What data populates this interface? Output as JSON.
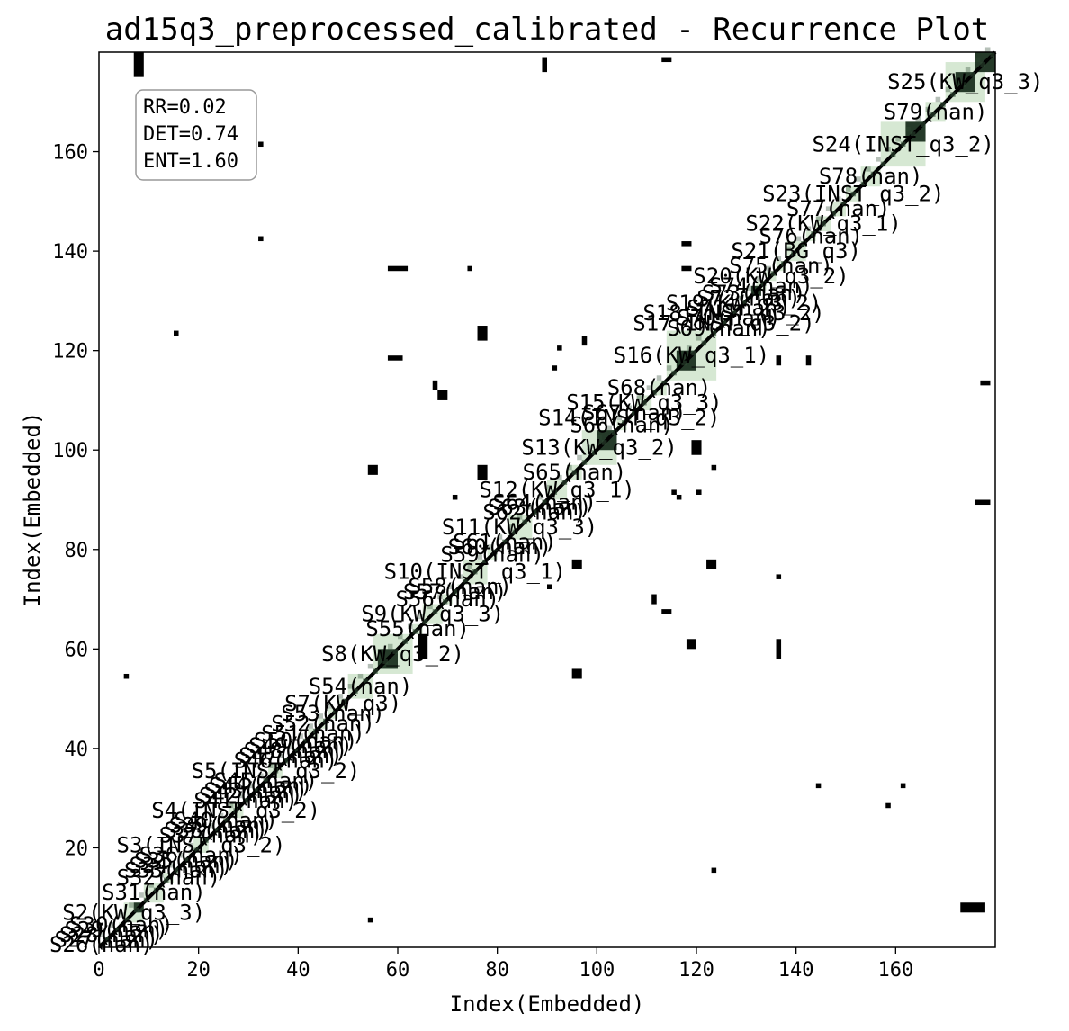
{
  "chart_data": {
    "type": "heatmap",
    "title": "ad15q3_preprocessed_calibrated - Recurrence Plot",
    "xlabel": "Index(Embedded)",
    "ylabel": "Index(Embedded)",
    "xlim": [
      0,
      180
    ],
    "ylim": [
      0,
      180
    ],
    "xticks": [
      0,
      20,
      40,
      60,
      80,
      100,
      120,
      140,
      160
    ],
    "yticks": [
      20,
      40,
      60,
      80,
      100,
      120,
      140,
      160
    ],
    "grid": false,
    "stats_box": {
      "placement": "top-left",
      "lines": [
        "RR=0.02",
        "DET=0.74",
        "ENT=1.60"
      ]
    },
    "colors": {
      "recurrence": "#000000",
      "segment_fill": "#d6e8d3",
      "segment_dense": "#253a29"
    },
    "segments": [
      {
        "label": "S26(nan)",
        "start": 0,
        "end": 1
      },
      {
        "label": "S27(nan)",
        "start": 1,
        "end": 2
      },
      {
        "label": "S28(nan)",
        "start": 2,
        "end": 3
      },
      {
        "label": "S29(nan)",
        "start": 3,
        "end": 4
      },
      {
        "label": "S30(nan)",
        "start": 4,
        "end": 5
      },
      {
        "label": "S2(KW_q3_3)",
        "start": 5,
        "end": 9
      },
      {
        "label": "S31(nan)",
        "start": 9,
        "end": 13
      },
      {
        "label": "S32(nan)",
        "start": 13,
        "end": 15
      },
      {
        "label": "S33(nan)",
        "start": 15,
        "end": 16
      },
      {
        "label": "S34(nan)",
        "start": 16,
        "end": 17
      },
      {
        "label": "S35(nan)",
        "start": 17,
        "end": 18
      },
      {
        "label": "S36(nan)",
        "start": 18,
        "end": 19
      },
      {
        "label": "S3(INST_q3_2)",
        "start": 19,
        "end": 22
      },
      {
        "label": "S37(nan)",
        "start": 22,
        "end": 23
      },
      {
        "label": "S38(nan)",
        "start": 23,
        "end": 24
      },
      {
        "label": "S39(nan)",
        "start": 24,
        "end": 25
      },
      {
        "label": "S40(nan)",
        "start": 25,
        "end": 26
      },
      {
        "label": "S4(INST_q3_2)",
        "start": 26,
        "end": 29
      },
      {
        "label": "S41(nan)",
        "start": 29,
        "end": 30
      },
      {
        "label": "S42(nan)",
        "start": 30,
        "end": 31
      },
      {
        "label": "S43(nan)",
        "start": 31,
        "end": 32
      },
      {
        "label": "S44(nan)",
        "start": 32,
        "end": 33
      },
      {
        "label": "S45(nan)",
        "start": 33,
        "end": 34
      },
      {
        "label": "S5(INST_q3_2)",
        "start": 34,
        "end": 37
      },
      {
        "label": "S46(nan)",
        "start": 37,
        "end": 38
      },
      {
        "label": "S47(nan)",
        "start": 38,
        "end": 39
      },
      {
        "label": "S48(nan)",
        "start": 39,
        "end": 40
      },
      {
        "label": "S49(nan)",
        "start": 40,
        "end": 41
      },
      {
        "label": "S50(nan)",
        "start": 41,
        "end": 42
      },
      {
        "label": "S51(nan)",
        "start": 42,
        "end": 44
      },
      {
        "label": "S52(nan)",
        "start": 44,
        "end": 46
      },
      {
        "label": "S53(nan)",
        "start": 46,
        "end": 48
      },
      {
        "label": "S7(KW_q3)",
        "start": 48,
        "end": 50
      },
      {
        "label": "S54(nan)",
        "start": 50,
        "end": 55
      },
      {
        "label": "S8(KW_q3_2)",
        "start": 55,
        "end": 63
      },
      {
        "label": "S55(nan)",
        "start": 63,
        "end": 65
      },
      {
        "label": "S9(KW_q3_3)",
        "start": 65,
        "end": 69
      },
      {
        "label": "S56(nan)",
        "start": 69,
        "end": 71
      },
      {
        "label": "S57(nan)",
        "start": 71,
        "end": 72
      },
      {
        "label": "S58(nan)",
        "start": 72,
        "end": 73
      },
      {
        "label": "S10(INST_q3_1)",
        "start": 73,
        "end": 78
      },
      {
        "label": "S59(nan)",
        "start": 78,
        "end": 80
      },
      {
        "label": "S60(nan)",
        "start": 80,
        "end": 81
      },
      {
        "label": "S61(nan)",
        "start": 81,
        "end": 82
      },
      {
        "label": "S11(KW_q3_3)",
        "start": 82,
        "end": 87
      },
      {
        "label": "S62(nan)",
        "start": 87,
        "end": 88
      },
      {
        "label": "S63(nan)",
        "start": 88,
        "end": 89
      },
      {
        "label": "S64(nan)",
        "start": 89,
        "end": 90
      },
      {
        "label": "S12(KW_q3_1)",
        "start": 90,
        "end": 94
      },
      {
        "label": "S65(nan)",
        "start": 94,
        "end": 97
      },
      {
        "label": "S13(KW_q3_2)",
        "start": 97,
        "end": 104
      },
      {
        "label": "S66(nan)",
        "start": 104,
        "end": 106
      },
      {
        "label": "S14(INST_q3_2)",
        "start": 106,
        "end": 107
      },
      {
        "label": "S67(nan)",
        "start": 107,
        "end": 108
      },
      {
        "label": "S15(KW_q3_3)",
        "start": 108,
        "end": 111
      },
      {
        "label": "S68(nan)",
        "start": 111,
        "end": 114
      },
      {
        "label": "S16(KW_q3_1)",
        "start": 114,
        "end": 124
      },
      {
        "label": "S69(nan)",
        "start": 124,
        "end": 125
      },
      {
        "label": "S17(INST_q3_2)",
        "start": 125,
        "end": 126
      },
      {
        "label": "S70(nan)",
        "start": 126,
        "end": 127
      },
      {
        "label": "S18(INST_q3_2)",
        "start": 127,
        "end": 128
      },
      {
        "label": "S71(nan)",
        "start": 128,
        "end": 129
      },
      {
        "label": "S19(KW_q3_2)",
        "start": 129,
        "end": 130
      },
      {
        "label": "S72(nan)",
        "start": 130,
        "end": 131
      },
      {
        "label": "S73(nan)",
        "start": 131,
        "end": 132
      },
      {
        "label": "S74(nan)",
        "start": 132,
        "end": 134
      },
      {
        "label": "S20(KW_q3_2)",
        "start": 134,
        "end": 136
      },
      {
        "label": "S75(nan)",
        "start": 136,
        "end": 138
      },
      {
        "label": "S21(BG_q3)",
        "start": 138,
        "end": 142
      },
      {
        "label": "S76(nan)",
        "start": 142,
        "end": 144
      },
      {
        "label": "S22(KW_q3_1)",
        "start": 144,
        "end": 147
      },
      {
        "label": "S77(nan)",
        "start": 147,
        "end": 150
      },
      {
        "label": "S23(INST_q3_2)",
        "start": 150,
        "end": 153
      },
      {
        "label": "S78(nan)",
        "start": 153,
        "end": 157
      },
      {
        "label": "S24(INST_q3_2)",
        "start": 157,
        "end": 166
      },
      {
        "label": "S79(nan)",
        "start": 166,
        "end": 170
      },
      {
        "label": "S25(KW_q3_3)",
        "start": 170,
        "end": 178
      }
    ],
    "dense_blocks": [
      [
        7,
        9
      ],
      [
        56,
        60
      ],
      [
        100,
        104
      ],
      [
        116,
        120
      ],
      [
        131,
        133
      ],
      [
        162,
        166
      ],
      [
        172,
        176
      ],
      [
        176,
        180
      ]
    ],
    "recurrence_clusters": [
      {
        "x": 7,
        "y": 175,
        "w": 2,
        "h": 5
      },
      {
        "x": 89,
        "y": 176,
        "w": 1,
        "h": 3
      },
      {
        "x": 113,
        "y": 178,
        "w": 2,
        "h": 1
      },
      {
        "x": 32,
        "y": 161,
        "w": 1,
        "h": 1
      },
      {
        "x": 32,
        "y": 142,
        "w": 1,
        "h": 1
      },
      {
        "x": 58,
        "y": 136,
        "w": 4,
        "h": 1
      },
      {
        "x": 74,
        "y": 136,
        "w": 1,
        "h": 1
      },
      {
        "x": 117,
        "y": 141,
        "w": 2,
        "h": 1
      },
      {
        "x": 117,
        "y": 136,
        "w": 2,
        "h": 1
      },
      {
        "x": 15,
        "y": 123,
        "w": 1,
        "h": 1
      },
      {
        "x": 58,
        "y": 118,
        "w": 3,
        "h": 1
      },
      {
        "x": 76,
        "y": 122,
        "w": 2,
        "h": 3
      },
      {
        "x": 92,
        "y": 120,
        "w": 1,
        "h": 1
      },
      {
        "x": 97,
        "y": 121,
        "w": 1,
        "h": 2
      },
      {
        "x": 91,
        "y": 116,
        "w": 1,
        "h": 1
      },
      {
        "x": 67,
        "y": 112,
        "w": 1,
        "h": 2
      },
      {
        "x": 68,
        "y": 110,
        "w": 2,
        "h": 2
      },
      {
        "x": 136,
        "y": 117,
        "w": 1,
        "h": 2
      },
      {
        "x": 142,
        "y": 117,
        "w": 1,
        "h": 2
      },
      {
        "x": 177,
        "y": 113,
        "w": 2,
        "h": 1
      },
      {
        "x": 54,
        "y": 95,
        "w": 2,
        "h": 2
      },
      {
        "x": 76,
        "y": 94,
        "w": 2,
        "h": 3
      },
      {
        "x": 119,
        "y": 99,
        "w": 2,
        "h": 3
      },
      {
        "x": 123,
        "y": 96,
        "w": 1,
        "h": 1
      },
      {
        "x": 71,
        "y": 90,
        "w": 1,
        "h": 1
      },
      {
        "x": 115,
        "y": 91,
        "w": 1,
        "h": 1
      },
      {
        "x": 116,
        "y": 90,
        "w": 1,
        "h": 1
      },
      {
        "x": 120,
        "y": 91,
        "w": 1,
        "h": 1
      },
      {
        "x": 176,
        "y": 89,
        "w": 3,
        "h": 1
      },
      {
        "x": 95,
        "y": 76,
        "w": 2,
        "h": 2
      },
      {
        "x": 122,
        "y": 76,
        "w": 2,
        "h": 2
      },
      {
        "x": 90,
        "y": 72,
        "w": 1,
        "h": 1
      },
      {
        "x": 136,
        "y": 74,
        "w": 1,
        "h": 1
      },
      {
        "x": 111,
        "y": 69,
        "w": 1,
        "h": 2
      },
      {
        "x": 113,
        "y": 67,
        "w": 2,
        "h": 1
      },
      {
        "x": 64,
        "y": 58,
        "w": 2,
        "h": 5
      },
      {
        "x": 118,
        "y": 60,
        "w": 2,
        "h": 2
      },
      {
        "x": 136,
        "y": 58,
        "w": 1,
        "h": 4
      },
      {
        "x": 5,
        "y": 54,
        "w": 1,
        "h": 1
      },
      {
        "x": 95,
        "y": 54,
        "w": 2,
        "h": 2
      },
      {
        "x": 144,
        "y": 32,
        "w": 1,
        "h": 1
      },
      {
        "x": 161,
        "y": 32,
        "w": 1,
        "h": 1
      },
      {
        "x": 158,
        "y": 28,
        "w": 1,
        "h": 1
      },
      {
        "x": 123,
        "y": 15,
        "w": 1,
        "h": 1
      },
      {
        "x": 54,
        "y": 5,
        "w": 1,
        "h": 1
      },
      {
        "x": 173,
        "y": 7,
        "w": 5,
        "h": 2
      }
    ]
  }
}
